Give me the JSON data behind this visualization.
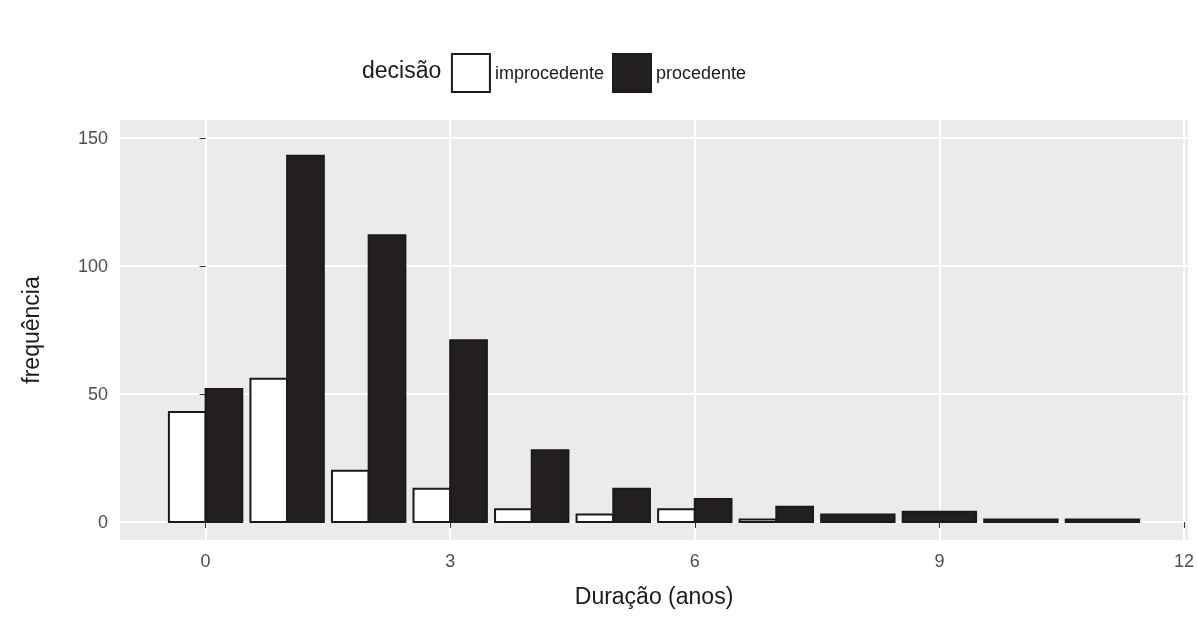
{
  "chart_data": {
    "type": "bar",
    "xlabel": "Duração (anos)",
    "ylabel": "frequência",
    "legend_title": "decisão",
    "x": [
      0,
      1,
      2,
      3,
      4,
      5,
      6,
      7,
      8,
      9,
      10,
      11
    ],
    "series": [
      {
        "name": "improcedente",
        "color": "#ffffff",
        "values": [
          43,
          56,
          20,
          13,
          5,
          3,
          5,
          1,
          null,
          null,
          null,
          null
        ]
      },
      {
        "name": "procedente",
        "color": "#231f20",
        "values": [
          52,
          143,
          112,
          71,
          28,
          13,
          9,
          6,
          3,
          4,
          1,
          1
        ]
      }
    ],
    "xlim": [
      -1.05,
      12.05
    ],
    "xticks": [
      0,
      3,
      6,
      9,
      12
    ],
    "ylim": [
      -7,
      157
    ],
    "yticks": [
      0,
      50,
      100,
      150
    ],
    "grid": true,
    "legend": "top"
  }
}
